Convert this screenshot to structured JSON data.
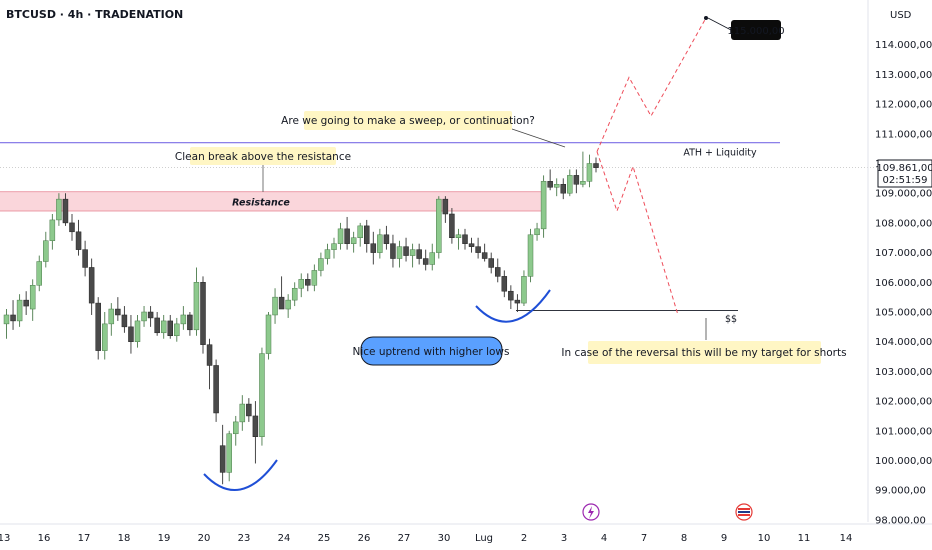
{
  "title": "BTCUSD · 4h · TRADENATION",
  "currency": "USD",
  "colors": {
    "up": "#8dc98d",
    "down": "#4a4a4a",
    "resistance_fill": "#f8c8cf",
    "resistance_line": "#e57f8f",
    "ath_line": "#7b6ee6",
    "dashed_path": "#ee4d5a",
    "arc": "#1f4fd6",
    "callout_bg": "#fff6c4",
    "blue_label_bg": "#5aa0ff",
    "tag_bg": "#0b0b0b",
    "current_price_line": "#bfbfbf"
  },
  "chart_data": {
    "type": "candlestick",
    "title": "BTCUSD · 4h · TRADENATION",
    "ylabel": "USD",
    "ylim": [
      97700,
      115700
    ],
    "y_ticks": [
      "98.000,00",
      "99.000,00",
      "100.000,00",
      "101.000,00",
      "102.000,00",
      "103.000,00",
      "104.000,00",
      "105.000,00",
      "106.000,00",
      "107.000,00",
      "108.000,00",
      "109.000,00",
      "110.000,00",
      "111.000,00",
      "112.000,00",
      "113.000,00",
      "114.000,00"
    ],
    "x_ticks": [
      "13",
      "16",
      "17",
      "18",
      "19",
      "20",
      "23",
      "24",
      "25",
      "26",
      "27",
      "30",
      "Lug",
      "2",
      "3",
      "4",
      "7",
      "8",
      "9",
      "10",
      "11",
      "14"
    ],
    "candles": [
      {
        "o": 104.6,
        "h": 105.1,
        "l": 104.1,
        "c": 104.9
      },
      {
        "o": 104.9,
        "h": 105.4,
        "l": 104.4,
        "c": 104.7
      },
      {
        "o": 104.7,
        "h": 105.6,
        "l": 104.5,
        "c": 105.4
      },
      {
        "o": 105.4,
        "h": 105.7,
        "l": 104.9,
        "c": 105.2
      },
      {
        "o": 105.1,
        "h": 106.1,
        "l": 104.7,
        "c": 105.9
      },
      {
        "o": 105.9,
        "h": 106.9,
        "l": 105.7,
        "c": 106.7
      },
      {
        "o": 106.7,
        "h": 107.7,
        "l": 106.5,
        "c": 107.4
      },
      {
        "o": 107.4,
        "h": 108.3,
        "l": 107.1,
        "c": 108.1
      },
      {
        "o": 108.1,
        "h": 109.0,
        "l": 107.9,
        "c": 108.8
      },
      {
        "o": 108.8,
        "h": 109.0,
        "l": 107.9,
        "c": 108.0
      },
      {
        "o": 108.0,
        "h": 108.3,
        "l": 107.4,
        "c": 107.7
      },
      {
        "o": 107.7,
        "h": 108.1,
        "l": 106.9,
        "c": 107.1
      },
      {
        "o": 107.1,
        "h": 107.4,
        "l": 106.2,
        "c": 106.5
      },
      {
        "o": 106.5,
        "h": 106.8,
        "l": 104.9,
        "c": 105.3
      },
      {
        "o": 105.3,
        "h": 105.5,
        "l": 103.4,
        "c": 103.7
      },
      {
        "o": 103.7,
        "h": 105.0,
        "l": 103.4,
        "c": 104.6
      },
      {
        "o": 104.6,
        "h": 105.3,
        "l": 104.2,
        "c": 105.1
      },
      {
        "o": 105.1,
        "h": 105.5,
        "l": 104.7,
        "c": 104.9
      },
      {
        "o": 104.9,
        "h": 105.2,
        "l": 104.3,
        "c": 104.5
      },
      {
        "o": 104.5,
        "h": 104.9,
        "l": 103.6,
        "c": 104.0
      },
      {
        "o": 104.0,
        "h": 104.9,
        "l": 103.8,
        "c": 104.7
      },
      {
        "o": 104.7,
        "h": 105.2,
        "l": 104.5,
        "c": 105.0
      },
      {
        "o": 105.0,
        "h": 105.2,
        "l": 104.5,
        "c": 104.8
      },
      {
        "o": 104.8,
        "h": 105.0,
        "l": 104.2,
        "c": 104.3
      },
      {
        "o": 104.3,
        "h": 104.9,
        "l": 104.1,
        "c": 104.7
      },
      {
        "o": 104.7,
        "h": 104.9,
        "l": 104.1,
        "c": 104.2
      },
      {
        "o": 104.2,
        "h": 104.8,
        "l": 104.0,
        "c": 104.6
      },
      {
        "o": 104.6,
        "h": 105.2,
        "l": 104.4,
        "c": 104.9
      },
      {
        "o": 104.9,
        "h": 105.0,
        "l": 104.2,
        "c": 104.4
      },
      {
        "o": 104.4,
        "h": 106.5,
        "l": 104.2,
        "c": 106.0
      },
      {
        "o": 106.0,
        "h": 106.2,
        "l": 103.6,
        "c": 103.9
      },
      {
        "o": 103.9,
        "h": 104.1,
        "l": 102.4,
        "c": 103.2
      },
      {
        "o": 103.2,
        "h": 103.4,
        "l": 101.3,
        "c": 101.6
      },
      {
        "o": 100.5,
        "h": 101.2,
        "l": 99.2,
        "c": 99.6
      },
      {
        "o": 99.6,
        "h": 101.0,
        "l": 99.3,
        "c": 100.9
      },
      {
        "o": 100.9,
        "h": 101.5,
        "l": 100.5,
        "c": 101.3
      },
      {
        "o": 101.3,
        "h": 102.2,
        "l": 101.0,
        "c": 101.9
      },
      {
        "o": 101.9,
        "h": 102.1,
        "l": 101.3,
        "c": 101.5
      },
      {
        "o": 101.5,
        "h": 102.0,
        "l": 99.9,
        "c": 100.8
      },
      {
        "o": 100.8,
        "h": 103.8,
        "l": 100.5,
        "c": 103.6
      },
      {
        "o": 103.6,
        "h": 105.0,
        "l": 103.4,
        "c": 104.9
      },
      {
        "o": 104.9,
        "h": 105.8,
        "l": 104.6,
        "c": 105.5
      },
      {
        "o": 105.5,
        "h": 106.2,
        "l": 105.2,
        "c": 105.1
      },
      {
        "o": 105.1,
        "h": 105.6,
        "l": 104.8,
        "c": 105.4
      },
      {
        "o": 105.4,
        "h": 106.0,
        "l": 105.2,
        "c": 105.8
      },
      {
        "o": 105.8,
        "h": 106.3,
        "l": 105.5,
        "c": 106.1
      },
      {
        "o": 106.1,
        "h": 106.3,
        "l": 105.7,
        "c": 105.9
      },
      {
        "o": 105.9,
        "h": 106.6,
        "l": 105.7,
        "c": 106.4
      },
      {
        "o": 106.4,
        "h": 107.0,
        "l": 106.2,
        "c": 106.8
      },
      {
        "o": 106.8,
        "h": 107.3,
        "l": 106.6,
        "c": 107.1
      },
      {
        "o": 107.1,
        "h": 107.5,
        "l": 106.8,
        "c": 107.3
      },
      {
        "o": 107.3,
        "h": 108.0,
        "l": 107.1,
        "c": 107.8
      },
      {
        "o": 107.8,
        "h": 108.2,
        "l": 107.1,
        "c": 107.3
      },
      {
        "o": 107.3,
        "h": 107.7,
        "l": 107.0,
        "c": 107.5
      },
      {
        "o": 107.5,
        "h": 108.0,
        "l": 107.2,
        "c": 107.9
      },
      {
        "o": 107.9,
        "h": 108.1,
        "l": 107.0,
        "c": 107.3
      },
      {
        "o": 107.3,
        "h": 107.7,
        "l": 106.6,
        "c": 107.0
      },
      {
        "o": 107.0,
        "h": 107.8,
        "l": 106.8,
        "c": 107.6
      },
      {
        "o": 107.6,
        "h": 107.9,
        "l": 107.1,
        "c": 107.3
      },
      {
        "o": 107.3,
        "h": 107.6,
        "l": 106.5,
        "c": 106.8
      },
      {
        "o": 106.8,
        "h": 107.4,
        "l": 106.5,
        "c": 107.2
      },
      {
        "o": 107.2,
        "h": 107.5,
        "l": 106.7,
        "c": 106.9
      },
      {
        "o": 106.9,
        "h": 107.3,
        "l": 106.5,
        "c": 107.1
      },
      {
        "o": 107.1,
        "h": 107.3,
        "l": 106.6,
        "c": 106.8
      },
      {
        "o": 106.8,
        "h": 107.1,
        "l": 106.4,
        "c": 106.6
      },
      {
        "o": 106.6,
        "h": 107.3,
        "l": 106.4,
        "c": 107.0
      },
      {
        "o": 107.0,
        "h": 108.9,
        "l": 106.8,
        "c": 108.8
      },
      {
        "o": 108.8,
        "h": 108.9,
        "l": 108.0,
        "c": 108.3
      },
      {
        "o": 108.3,
        "h": 108.5,
        "l": 107.3,
        "c": 107.5
      },
      {
        "o": 107.5,
        "h": 107.8,
        "l": 107.1,
        "c": 107.6
      },
      {
        "o": 107.6,
        "h": 107.8,
        "l": 107.1,
        "c": 107.3
      },
      {
        "o": 107.3,
        "h": 107.5,
        "l": 107.0,
        "c": 107.2
      },
      {
        "o": 107.2,
        "h": 107.5,
        "l": 106.8,
        "c": 107.0
      },
      {
        "o": 107.0,
        "h": 107.3,
        "l": 106.7,
        "c": 106.8
      },
      {
        "o": 106.8,
        "h": 107.0,
        "l": 106.3,
        "c": 106.5
      },
      {
        "o": 106.5,
        "h": 106.8,
        "l": 106.0,
        "c": 106.2
      },
      {
        "o": 106.2,
        "h": 106.4,
        "l": 105.5,
        "c": 105.7
      },
      {
        "o": 105.7,
        "h": 105.9,
        "l": 105.1,
        "c": 105.4
      },
      {
        "o": 105.4,
        "h": 105.6,
        "l": 105.0,
        "c": 105.3
      },
      {
        "o": 105.3,
        "h": 106.4,
        "l": 105.2,
        "c": 106.2
      },
      {
        "o": 106.2,
        "h": 107.8,
        "l": 106.0,
        "c": 107.6
      },
      {
        "o": 107.6,
        "h": 108.0,
        "l": 107.4,
        "c": 107.8
      },
      {
        "o": 107.8,
        "h": 109.6,
        "l": 107.5,
        "c": 109.4
      },
      {
        "o": 109.4,
        "h": 109.8,
        "l": 109.1,
        "c": 109.2
      },
      {
        "o": 109.2,
        "h": 109.5,
        "l": 108.9,
        "c": 109.3
      },
      {
        "o": 109.3,
        "h": 109.5,
        "l": 108.8,
        "c": 109.0
      },
      {
        "o": 109.0,
        "h": 109.8,
        "l": 108.9,
        "c": 109.6
      },
      {
        "o": 109.6,
        "h": 109.8,
        "l": 109.0,
        "c": 109.3
      },
      {
        "o": 109.3,
        "h": 110.4,
        "l": 109.2,
        "c": 109.4
      },
      {
        "o": 109.4,
        "h": 110.3,
        "l": 109.2,
        "c": 110.0
      },
      {
        "o": 110.0,
        "h": 110.2,
        "l": 109.7,
        "c": 109.86
      }
    ],
    "resistance_zone": {
      "low": 108.4,
      "high": 109.05,
      "label": "Resistance"
    },
    "ath_level": 110.7,
    "liquidity_level": 105.05,
    "current_price": "109.861,00",
    "countdown": "02:51:59",
    "target_price_tag": "115.000,00",
    "annotations": [
      "Clean break above the resistance",
      "Are we going to make a sweep, or continuation?",
      "ATH + Liquidity",
      "Nice uptrend with higher lows",
      "In case of the reversal this will be my target for shorts",
      "$$"
    ],
    "projection_up": [
      110.4,
      112.9,
      111.6,
      114.9
    ],
    "projection_down": [
      110.4,
      108.4,
      109.9,
      104.9
    ],
    "grid": false,
    "legend": "none"
  },
  "labels": {
    "resistance": "Resistance",
    "ath": "ATH + Liquidity",
    "liquidity": "$$",
    "break": "Clean break above the resistance",
    "sweep": "Are we going to make a sweep, or continuation?",
    "uptrend": "Nice uptrend with higher lows",
    "reversal": "In case of the reversal this will be my target for shorts"
  },
  "icons": {
    "event_1": "lightning-icon",
    "event_2": "flag-icon"
  }
}
